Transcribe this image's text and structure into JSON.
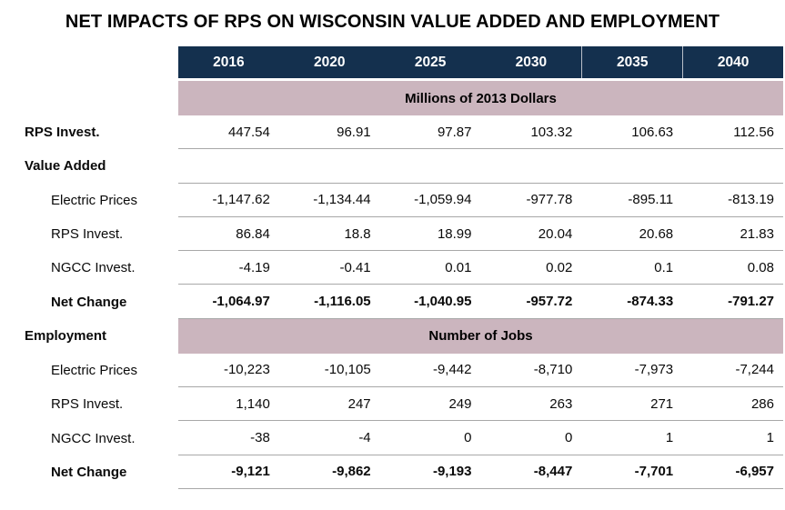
{
  "title": "NET IMPACTS OF RPS ON WISCONSIN VALUE ADDED AND EMPLOYMENT",
  "colors": {
    "header_bg": "#14304E",
    "header_text": "#FFFFFF",
    "band_bg": "#CBB5BE",
    "grid_line": "#A8A8A8",
    "header_separator": "#B9BFC8",
    "body_text": "#000000"
  },
  "years": [
    "2016",
    "2020",
    "2025",
    "2030",
    "2035",
    "2040"
  ],
  "bands": {
    "dollars": {
      "row_label": "",
      "text": "Millions of 2013 Dollars"
    },
    "jobs": {
      "row_label": "Employment",
      "text": "Number of Jobs"
    }
  },
  "rows": [
    {
      "label": "RPS Invest.",
      "values": [
        "447.54",
        "96.91",
        "97.87",
        "103.32",
        "106.63",
        "112.56"
      ]
    },
    {
      "label": "Value Added",
      "values": [
        "",
        "",
        "",
        "",
        "",
        ""
      ]
    },
    {
      "label": "Electric Prices",
      "values": [
        "-1,147.62",
        "-1,134.44",
        "-1,059.94",
        "-977.78",
        "-895.11",
        "-813.19"
      ]
    },
    {
      "label": "RPS Invest.",
      "values": [
        "86.84",
        "18.8",
        "18.99",
        "20.04",
        "20.68",
        "21.83"
      ]
    },
    {
      "label": "NGCC Invest.",
      "values": [
        "-4.19",
        "-0.41",
        "0.01",
        "0.02",
        "0.1",
        "0.08"
      ]
    },
    {
      "label": "Net Change",
      "values": [
        "-1,064.97",
        "-1,116.05",
        "-1,040.95",
        "-957.72",
        "-874.33",
        "-791.27"
      ]
    },
    {
      "label": "Electric Prices",
      "values": [
        "-10,223",
        "-10,105",
        "-9,442",
        "-8,710",
        "-7,973",
        "-7,244"
      ]
    },
    {
      "label": "RPS Invest.",
      "values": [
        "1,140",
        "247",
        "249",
        "263",
        "271",
        "286"
      ]
    },
    {
      "label": "NGCC Invest.",
      "values": [
        "-38",
        "-4",
        "0",
        "0",
        "1",
        "1"
      ]
    },
    {
      "label": "Net Change",
      "values": [
        "-9,121",
        "-9,862",
        "-9,193",
        "-8,447",
        "-7,701",
        "-6,957"
      ]
    }
  ],
  "chart_data": {
    "type": "table",
    "title": "NET IMPACTS OF RPS ON WISCONSIN VALUE ADDED AND EMPLOYMENT",
    "columns": [
      "2016",
      "2020",
      "2025",
      "2030",
      "2035",
      "2040"
    ],
    "section_headers": [
      "Millions of 2013 Dollars",
      "Number of Jobs"
    ],
    "rows": [
      {
        "label": "RPS Invest.",
        "section": "Millions of 2013 Dollars",
        "values": [
          447.54,
          96.91,
          97.87,
          103.32,
          106.63,
          112.56
        ]
      },
      {
        "label": "Value Added > Electric Prices",
        "section": "Millions of 2013 Dollars",
        "values": [
          -1147.62,
          -1134.44,
          -1059.94,
          -977.78,
          -895.11,
          -813.19
        ]
      },
      {
        "label": "Value Added > RPS Invest.",
        "section": "Millions of 2013 Dollars",
        "values": [
          86.84,
          18.8,
          18.99,
          20.04,
          20.68,
          21.83
        ]
      },
      {
        "label": "Value Added > NGCC Invest.",
        "section": "Millions of 2013 Dollars",
        "values": [
          -4.19,
          -0.41,
          0.01,
          0.02,
          0.1,
          0.08
        ]
      },
      {
        "label": "Value Added > Net Change",
        "section": "Millions of 2013 Dollars",
        "values": [
          -1064.97,
          -1116.05,
          -1040.95,
          -957.72,
          -874.33,
          -791.27
        ]
      },
      {
        "label": "Employment > Electric Prices",
        "section": "Number of Jobs",
        "values": [
          -10223,
          -10105,
          -9442,
          -8710,
          -7973,
          -7244
        ]
      },
      {
        "label": "Employment > RPS Invest.",
        "section": "Number of Jobs",
        "values": [
          1140,
          247,
          249,
          263,
          271,
          286
        ]
      },
      {
        "label": "Employment > NGCC Invest.",
        "section": "Number of Jobs",
        "values": [
          -38,
          -4,
          0,
          0,
          1,
          1
        ]
      },
      {
        "label": "Employment > Net Change",
        "section": "Number of Jobs",
        "values": [
          -9121,
          -9862,
          -9193,
          -8447,
          -7701,
          -6957
        ]
      }
    ]
  }
}
